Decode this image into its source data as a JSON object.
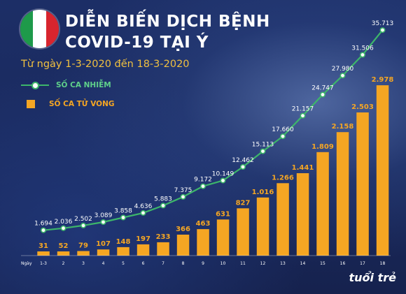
{
  "header": {
    "title_line1": "DIỄN BIẾN DỊCH BỆNH",
    "title_line2": "COVID-19 TẠI Ý",
    "subtitle": "Từ ngày 1-3-2020 đến 18-3-2020"
  },
  "legend": {
    "cases_label": "SỐ CA NHIỄM",
    "deaths_label": "SỐ CA TỬ VONG"
  },
  "logo_text": "tuổi trẻ",
  "colors": {
    "background": "#1a2a5e",
    "cases_line": "#3db66a",
    "deaths_bar": "#f5a623",
    "title": "#ffffff",
    "subtitle": "#f0c040",
    "flag_green": "#1e9a4a",
    "flag_red": "#d8252e"
  },
  "chart_data": {
    "type": "bar",
    "title": "DIỄN BIẾN DỊCH BỆNH COVID-19 TẠI Ý",
    "subtitle": "Từ ngày 1-3-2020 đến 18-3-2020",
    "xlabel": "Ngày",
    "categories": [
      "1-3",
      "2",
      "3",
      "4",
      "5",
      "6",
      "7",
      "8",
      "9",
      "10",
      "11",
      "12",
      "13",
      "14",
      "15",
      "16",
      "17",
      "18"
    ],
    "series": [
      {
        "name": "SỐ CA NHIỄM",
        "type": "line",
        "values": [
          1694,
          2036,
          2502,
          3089,
          3858,
          4636,
          5883,
          7375,
          9172,
          10149,
          12462,
          15113,
          17660,
          21157,
          24747,
          27980,
          31506,
          35713
        ],
        "labels": [
          "1.694",
          "2.036",
          "2.502",
          "3.089",
          "3.858",
          "4.636",
          "5.883",
          "7.375",
          "9.172",
          "10.149",
          "12.462",
          "15.113",
          "17.660",
          "21.157",
          "24.747",
          "27.980",
          "31.506",
          "35.713"
        ]
      },
      {
        "name": "SỐ CA TỬ VONG",
        "type": "bar",
        "values": [
          31,
          52,
          79,
          107,
          148,
          197,
          233,
          366,
          463,
          631,
          827,
          1016,
          1266,
          1441,
          1809,
          2158,
          2503,
          2978
        ],
        "labels": [
          "31",
          "52",
          "79",
          "107",
          "148",
          "197",
          "233",
          "366",
          "463",
          "631",
          "827",
          "1.016",
          "1.266",
          "1.441",
          "1.809",
          "2.158",
          "2.503",
          "2.978"
        ]
      }
    ],
    "ylim_cases": [
      0,
      37500
    ],
    "ylim_deaths": [
      0,
      3150
    ],
    "grid": false,
    "legend_position": "top-left"
  }
}
